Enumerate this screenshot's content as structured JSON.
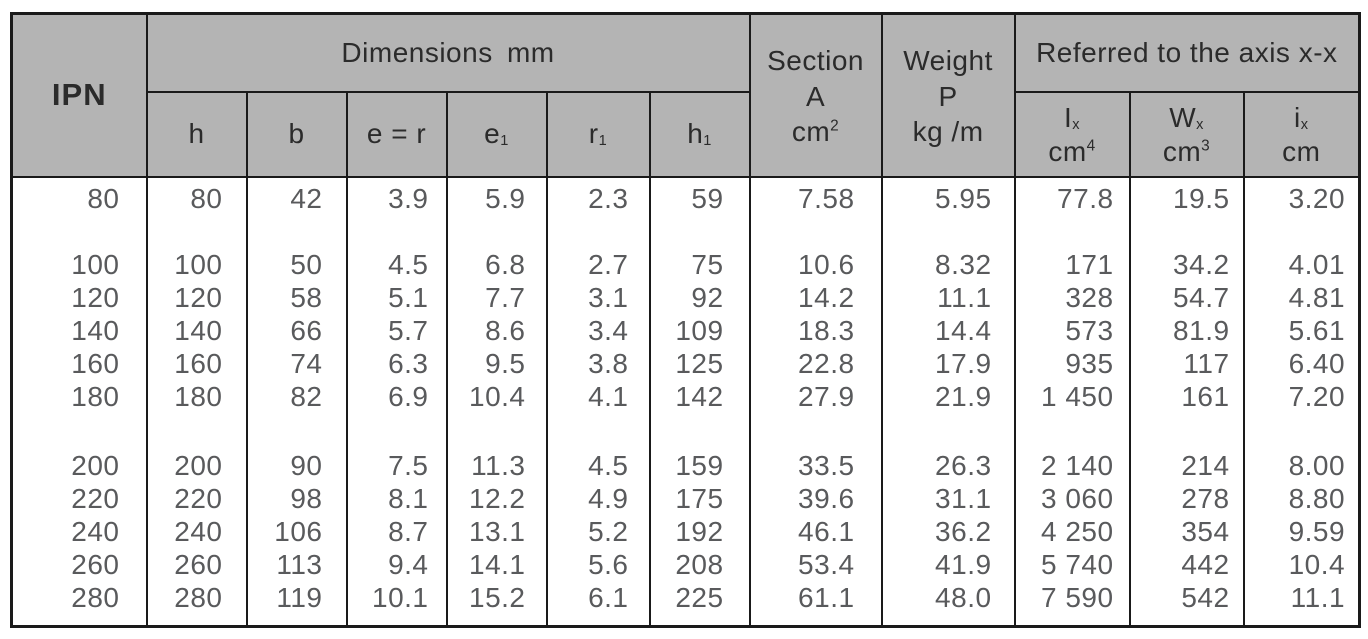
{
  "table": {
    "colors": {
      "header_bg": "#b4b4b4",
      "border": "#1a1a1a",
      "header_text": "#2b2b2b",
      "body_text": "#595a5c",
      "page_bg": "#ffffff"
    },
    "header": {
      "ipn": "IPN",
      "dimensions_title": "Dimensions mm",
      "axis_title": "Referred to the axis x-x",
      "section": {
        "title": "Section",
        "symbol": "A",
        "unit": "cm",
        "unit_sup": "2"
      },
      "weight": {
        "title": "Weight",
        "symbol": "P",
        "unit": "kg /m"
      },
      "dim_cols": [
        {
          "main": "h",
          "sub": ""
        },
        {
          "main": "b",
          "sub": ""
        },
        {
          "main": "e = r",
          "sub": ""
        },
        {
          "main": "e",
          "sub": "1"
        },
        {
          "main": "r",
          "sub": "1"
        },
        {
          "main": "h",
          "sub": "1"
        }
      ],
      "axis_cols": [
        {
          "main": "I",
          "sub": "x",
          "unit": "cm",
          "sup": "4"
        },
        {
          "main": "W",
          "sub": "x",
          "unit": "cm",
          "sup": "3"
        },
        {
          "main": "i",
          "sub": "x",
          "unit": "cm",
          "sup": ""
        }
      ]
    },
    "body": {
      "groups": [
        {
          "rows": [
            [
              "80",
              "80",
              "42",
              "3.9",
              "5.9",
              "2.3",
              "59",
              "7.58",
              "5.95",
              "77.8",
              "19.5",
              "3.20"
            ]
          ]
        },
        {
          "rows": [
            [
              "100",
              "100",
              "50",
              "4.5",
              "6.8",
              "2.7",
              "75",
              "10.6",
              "8.32",
              "171",
              "34.2",
              "4.01"
            ],
            [
              "120",
              "120",
              "58",
              "5.1",
              "7.7",
              "3.1",
              "92",
              "14.2",
              "11.1",
              "328",
              "54.7",
              "4.81"
            ],
            [
              "140",
              "140",
              "66",
              "5.7",
              "8.6",
              "3.4",
              "109",
              "18.3",
              "14.4",
              "573",
              "81.9",
              "5.61"
            ],
            [
              "160",
              "160",
              "74",
              "6.3",
              "9.5",
              "3.8",
              "125",
              "22.8",
              "17.9",
              "935",
              "117",
              "6.40"
            ],
            [
              "180",
              "180",
              "82",
              "6.9",
              "10.4",
              "4.1",
              "142",
              "27.9",
              "21.9",
              "1 450",
              "161",
              "7.20"
            ]
          ]
        },
        {
          "rows": [
            [
              "200",
              "200",
              "90",
              "7.5",
              "11.3",
              "4.5",
              "159",
              "33.5",
              "26.3",
              "2 140",
              "214",
              "8.00"
            ],
            [
              "220",
              "220",
              "98",
              "8.1",
              "12.2",
              "4.9",
              "175",
              "39.6",
              "31.1",
              "3 060",
              "278",
              "8.80"
            ],
            [
              "240",
              "240",
              "106",
              "8.7",
              "13.1",
              "5.2",
              "192",
              "46.1",
              "36.2",
              "4 250",
              "354",
              "9.59"
            ],
            [
              "260",
              "260",
              "113",
              "9.4",
              "14.1",
              "5.6",
              "208",
              "53.4",
              "41.9",
              "5 740",
              "442",
              "10.4"
            ],
            [
              "280",
              "280",
              "119",
              "10.1",
              "15.2",
              "6.1",
              "225",
              "61.1",
              "48.0",
              "7 590",
              "542",
              "11.1"
            ]
          ]
        }
      ]
    }
  }
}
